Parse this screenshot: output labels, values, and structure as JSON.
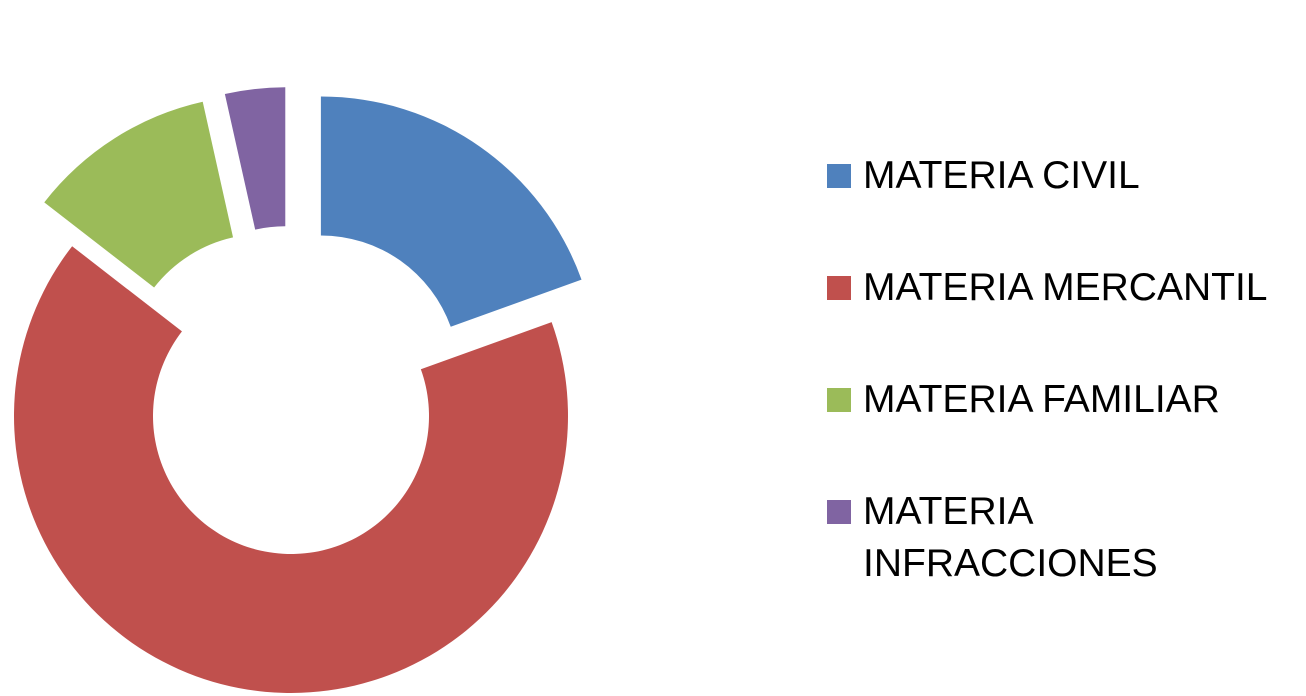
{
  "chart_data": {
    "type": "pie",
    "variant": "exploded-donut",
    "title": "",
    "categories": [
      "MATERIA CIVIL",
      "MATERIA MERCANTIL",
      "MATERIA FAMILIAR",
      "MATERIA INFRACCIONES"
    ],
    "values": [
      19.5,
      66,
      11,
      3.5
    ],
    "unit": "%",
    "colors": [
      "#4F81BD",
      "#C0504D",
      "#9BBB59",
      "#8064A2"
    ],
    "legend": "right",
    "show_values": false
  }
}
